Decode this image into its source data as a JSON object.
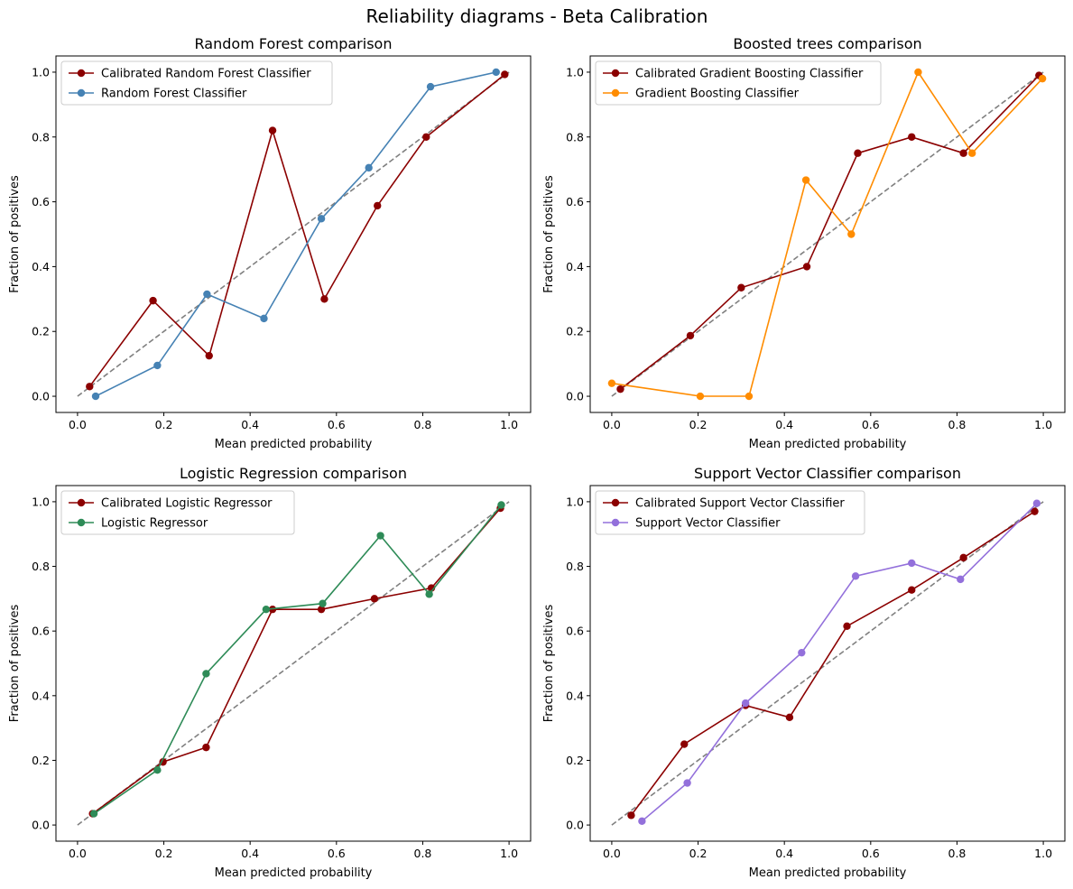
{
  "figure": {
    "suptitle": "Reliability diagrams - Beta Calibration"
  },
  "chart_data": [
    {
      "type": "line",
      "title": "Random Forest comparison",
      "xlabel": "Mean predicted probability",
      "ylabel": "Fraction of positives",
      "xlim": [
        -0.05,
        1.05
      ],
      "ylim": [
        -0.05,
        1.05
      ],
      "xticks": [
        "0.0",
        "0.2",
        "0.4",
        "0.6",
        "0.8",
        "1.0"
      ],
      "yticks": [
        "0.0",
        "0.2",
        "0.4",
        "0.6",
        "0.8",
        "1.0"
      ],
      "grid": false,
      "legend": "upper-left",
      "reference_line": {
        "x": [
          0,
          1
        ],
        "y": [
          0,
          1
        ],
        "color": "#808080",
        "style": "dashed"
      },
      "series": [
        {
          "name": "Calibrated Random Forest Classifier",
          "color": "#8b0000",
          "x": [
            0.028,
            0.175,
            0.305,
            0.452,
            0.572,
            0.695,
            0.808,
            0.99
          ],
          "y": [
            0.03,
            0.295,
            0.125,
            0.82,
            0.3,
            0.588,
            0.8,
            0.993
          ]
        },
        {
          "name": "Random Forest Classifier",
          "color": "#4682b4",
          "x": [
            0.042,
            0.185,
            0.3,
            0.432,
            0.565,
            0.675,
            0.818,
            0.97
          ],
          "y": [
            0.0,
            0.095,
            0.315,
            0.24,
            0.548,
            0.705,
            0.955,
            1.0
          ]
        }
      ]
    },
    {
      "type": "line",
      "title": "Boosted trees comparison",
      "xlabel": "Mean predicted probability",
      "ylabel": "Fraction of positives",
      "xlim": [
        -0.05,
        1.05
      ],
      "ylim": [
        -0.05,
        1.05
      ],
      "xticks": [
        "0.0",
        "0.2",
        "0.4",
        "0.6",
        "0.8",
        "1.0"
      ],
      "yticks": [
        "0.0",
        "0.2",
        "0.4",
        "0.6",
        "0.8",
        "1.0"
      ],
      "grid": false,
      "legend": "upper-left",
      "reference_line": {
        "x": [
          0,
          1
        ],
        "y": [
          0,
          1
        ],
        "color": "#808080",
        "style": "dashed"
      },
      "series": [
        {
          "name": "Calibrated Gradient Boosting Classifier",
          "color": "#8b0000",
          "x": [
            0.02,
            0.182,
            0.3,
            0.452,
            0.57,
            0.695,
            0.815,
            0.99
          ],
          "y": [
            0.022,
            0.187,
            0.335,
            0.4,
            0.75,
            0.8,
            0.75,
            0.99
          ]
        },
        {
          "name": "Gradient Boosting Classifier",
          "color": "#ff8c00",
          "x": [
            0.0,
            0.205,
            0.318,
            0.45,
            0.555,
            0.71,
            0.835,
            0.998
          ],
          "y": [
            0.04,
            0.0,
            0.0,
            0.667,
            0.5,
            1.0,
            0.75,
            0.98
          ]
        }
      ]
    },
    {
      "type": "line",
      "title": "Logistic Regression comparison",
      "xlabel": "Mean predicted probability",
      "ylabel": "Fraction of positives",
      "xlim": [
        -0.05,
        1.05
      ],
      "ylim": [
        -0.05,
        1.05
      ],
      "xticks": [
        "0.0",
        "0.2",
        "0.4",
        "0.6",
        "0.8",
        "1.0"
      ],
      "yticks": [
        "0.0",
        "0.2",
        "0.4",
        "0.6",
        "0.8",
        "1.0"
      ],
      "grid": false,
      "legend": "upper-left",
      "reference_line": {
        "x": [
          0,
          1
        ],
        "y": [
          0,
          1
        ],
        "color": "#808080",
        "style": "dashed"
      },
      "series": [
        {
          "name": "Calibrated Logistic Regressor",
          "color": "#8b0000",
          "x": [
            0.035,
            0.198,
            0.298,
            0.452,
            0.565,
            0.688,
            0.82,
            0.98
          ],
          "y": [
            0.035,
            0.195,
            0.24,
            0.667,
            0.667,
            0.7,
            0.733,
            0.98
          ]
        },
        {
          "name": "Logistic Regressor",
          "color": "#2e8b57",
          "x": [
            0.038,
            0.185,
            0.298,
            0.437,
            0.568,
            0.702,
            0.815,
            0.982
          ],
          "y": [
            0.035,
            0.17,
            0.468,
            0.667,
            0.685,
            0.895,
            0.714,
            0.99
          ]
        }
      ]
    },
    {
      "type": "line",
      "title": "Support Vector Classifier comparison",
      "xlabel": "Mean predicted probability",
      "ylabel": "Fraction of positives",
      "xlim": [
        -0.05,
        1.05
      ],
      "ylim": [
        -0.05,
        1.05
      ],
      "xticks": [
        "0.0",
        "0.2",
        "0.4",
        "0.6",
        "0.8",
        "1.0"
      ],
      "yticks": [
        "0.0",
        "0.2",
        "0.4",
        "0.6",
        "0.8",
        "1.0"
      ],
      "grid": false,
      "legend": "upper-left",
      "reference_line": {
        "x": [
          0,
          1
        ],
        "y": [
          0,
          1
        ],
        "color": "#808080",
        "style": "dashed"
      },
      "series": [
        {
          "name": "Calibrated Support Vector Classifier",
          "color": "#8b0000",
          "x": [
            0.045,
            0.168,
            0.31,
            0.412,
            0.545,
            0.695,
            0.815,
            0.98
          ],
          "y": [
            0.03,
            0.25,
            0.37,
            0.333,
            0.615,
            0.727,
            0.827,
            0.97
          ]
        },
        {
          "name": "Support Vector Classifier",
          "color": "#9370db",
          "x": [
            0.07,
            0.175,
            0.31,
            0.44,
            0.565,
            0.695,
            0.808,
            0.985
          ],
          "y": [
            0.012,
            0.13,
            0.377,
            0.533,
            0.77,
            0.81,
            0.76,
            0.995
          ]
        }
      ]
    }
  ]
}
